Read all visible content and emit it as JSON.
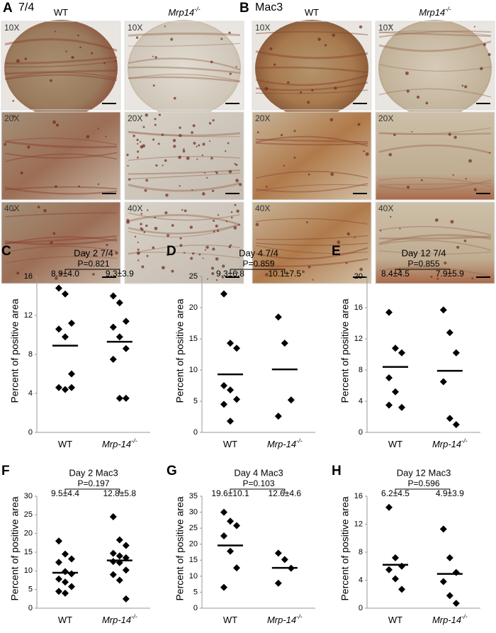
{
  "figure": {
    "panels": [
      {
        "letter": "A",
        "stain": "7/4",
        "columns": [
          {
            "text": "WT"
          },
          {
            "text": "Mrp14",
            "sup": "-/-"
          }
        ],
        "magnifications": [
          "10X",
          "20X",
          "40X"
        ]
      },
      {
        "letter": "B",
        "stain": "Mac3",
        "columns": [
          {
            "text": "WT"
          },
          {
            "text": "Mrp14",
            "sup": "-/-"
          }
        ],
        "magnifications": [
          "10X",
          "20X",
          "40X"
        ]
      }
    ]
  },
  "chart_data": [
    {
      "type": "scatter",
      "panel": "C",
      "title": "Day 2 7/4",
      "annotation": "P=0.821",
      "ylabel": "Percent of positive area",
      "categories": [
        {
          "text": "WT"
        },
        {
          "text": "Mrp-14",
          "sup": "-/-"
        }
      ],
      "color": "#000000",
      "values": [
        [
          14.8,
          14.2,
          11.2,
          10.6,
          9.8,
          6.0,
          4.6,
          4.4,
          4.6
        ],
        [
          14.0,
          13.3,
          11.4,
          10.8,
          9.8,
          8.6,
          7.5,
          3.5,
          3.5
        ]
      ],
      "means": [
        8.9,
        9.3
      ],
      "value_labels": [
        "8.9±4.0",
        "9.3±3.9"
      ],
      "ylim": [
        0,
        16
      ],
      "yticks": [
        0,
        4,
        8,
        12,
        16
      ]
    },
    {
      "type": "scatter",
      "panel": "D",
      "title": "Day 4 7/4",
      "annotation": "P=0.859",
      "ylabel": "Percent of positive area",
      "categories": [
        {
          "text": "WT"
        },
        {
          "text": "Mrp-14",
          "sup": "-/-"
        }
      ],
      "color": "#000000",
      "values": [
        [
          22.2,
          14.3,
          13.5,
          7.5,
          6.8,
          5.3,
          4.5,
          1.8
        ],
        [
          18.5,
          14.3,
          5.2,
          2.6
        ]
      ],
      "means": [
        9.3,
        10.1
      ],
      "value_labels": [
        "9.3±6.8",
        "10.1±7.5"
      ],
      "ylim": [
        0,
        25
      ],
      "yticks": [
        0,
        5,
        10,
        15,
        20,
        25
      ]
    },
    {
      "type": "scatter",
      "panel": "E",
      "title": "Day 12 7/4",
      "annotation": "P=0.855",
      "ylabel": "Percent of positive area",
      "categories": [
        {
          "text": "WT"
        },
        {
          "text": "Mrp-14",
          "sup": "-/-"
        }
      ],
      "color": "#000000",
      "values": [
        [
          15.4,
          10.8,
          10.2,
          7.0,
          5.2,
          3.2,
          3.5
        ],
        [
          15.7,
          12.8,
          10.2,
          6.5,
          1.8,
          1.0
        ]
      ],
      "means": [
        8.4,
        7.9
      ],
      "value_labels": [
        "8.4±4.5",
        "7.9±5.9"
      ],
      "ylim": [
        0,
        20
      ],
      "yticks": [
        0,
        4,
        8,
        12,
        16,
        20
      ]
    },
    {
      "type": "scatter",
      "panel": "F",
      "title": "Day 2 Mac3",
      "annotation": "P=0.197",
      "ylabel": "Percent of positive area",
      "categories": [
        {
          "text": "WT"
        },
        {
          "text": "Mrp-14",
          "sup": "-/-"
        }
      ],
      "color": "#000000",
      "values": [
        [
          18.0,
          14.5,
          13.2,
          12.3,
          9.8,
          9.2,
          7.8,
          7.0,
          5.8,
          4.5,
          4.0
        ],
        [
          24.5,
          18.3,
          16.8,
          14.7,
          14.0,
          13.5,
          12.5,
          12.2,
          10.2,
          9.0,
          7.5,
          2.5
        ]
      ],
      "means": [
        9.5,
        12.8
      ],
      "value_labels": [
        "9.5±4.4",
        "12.8±5.8"
      ],
      "ylim": [
        0,
        30
      ],
      "yticks": [
        0,
        5,
        10,
        15,
        20,
        25,
        30
      ]
    },
    {
      "type": "scatter",
      "panel": "G",
      "title": "Day 4 Mac3",
      "annotation": "P=0.103",
      "ylabel": "Percent of positive area",
      "categories": [
        {
          "text": "WT"
        },
        {
          "text": "Mrp-14",
          "sup": "-/-"
        }
      ],
      "color": "#000000",
      "values": [
        [
          30.0,
          27.2,
          25.8,
          22.6,
          17.8,
          12.6,
          6.5
        ],
        [
          17.2,
          15.2,
          12.5,
          7.8
        ]
      ],
      "means": [
        19.6,
        12.6
      ],
      "value_labels": [
        "19.6±10.1",
        "12.6±4.6"
      ],
      "ylim": [
        0,
        35
      ],
      "yticks": [
        0,
        5,
        10,
        15,
        20,
        25,
        30,
        35
      ]
    },
    {
      "type": "scatter",
      "panel": "H",
      "title": "Day 12 Mac3",
      "annotation": "P=0.596",
      "ylabel": "Percent of positive area",
      "categories": [
        {
          "text": "WT"
        },
        {
          "text": "Mrp-14",
          "sup": "-/-"
        }
      ],
      "color": "#000000",
      "values": [
        [
          14.4,
          7.2,
          6.0,
          5.5,
          4.2,
          2.7
        ],
        [
          11.3,
          7.2,
          5.1,
          3.8,
          1.8,
          0.7
        ]
      ],
      "means": [
        6.2,
        4.9
      ],
      "value_labels": [
        "6.2±4.5",
        "4.9±3.9"
      ],
      "ylim": [
        0,
        16
      ],
      "yticks": [
        0,
        4,
        8,
        12,
        16
      ]
    }
  ]
}
